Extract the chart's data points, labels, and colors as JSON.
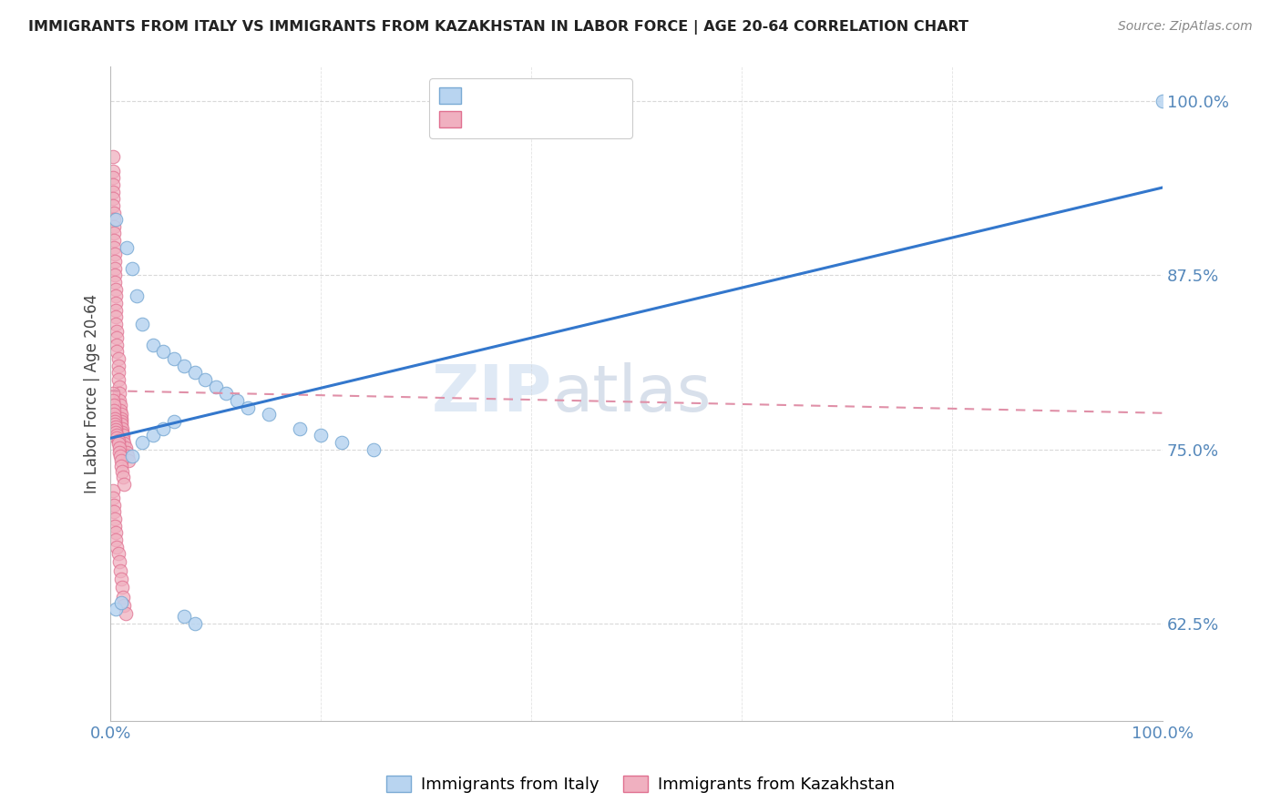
{
  "title": "IMMIGRANTS FROM ITALY VS IMMIGRANTS FROM KAZAKHSTAN IN LABOR FORCE | AGE 20-64 CORRELATION CHART",
  "source": "Source: ZipAtlas.com",
  "ylabel": "In Labor Force | Age 20-64",
  "xlim": [
    0.0,
    1.0
  ],
  "ylim": [
    0.555,
    1.025
  ],
  "yticks": [
    0.625,
    0.75,
    0.875,
    1.0
  ],
  "ytick_labels": [
    "62.5%",
    "75.0%",
    "87.5%",
    "100.0%"
  ],
  "xticks": [
    0.0,
    0.2,
    0.4,
    0.6,
    0.8,
    1.0
  ],
  "xtick_labels": [
    "0.0%",
    "",
    "",
    "",
    "",
    "100.0%"
  ],
  "italy_color": "#b8d4f0",
  "italy_edge": "#7aaad4",
  "kaz_color": "#f0b0c0",
  "kaz_edge": "#e07090",
  "watermark_zip": "ZIP",
  "watermark_atlas": "atlas",
  "italy_scatter_x": [
    0.005,
    0.015,
    0.02,
    0.025,
    0.03,
    0.04,
    0.05,
    0.06,
    0.07,
    0.08,
    0.09,
    0.1,
    0.11,
    0.12,
    0.13,
    0.15,
    0.18,
    0.2,
    0.22,
    0.25,
    0.005,
    0.01,
    0.02,
    0.03,
    0.04,
    0.05,
    0.06,
    0.07,
    0.08,
    1.0
  ],
  "italy_scatter_y": [
    0.915,
    0.895,
    0.88,
    0.86,
    0.84,
    0.825,
    0.82,
    0.815,
    0.81,
    0.805,
    0.8,
    0.795,
    0.79,
    0.785,
    0.78,
    0.775,
    0.765,
    0.76,
    0.755,
    0.75,
    0.635,
    0.64,
    0.745,
    0.755,
    0.76,
    0.765,
    0.77,
    0.63,
    0.625,
    1.0
  ],
  "kaz_scatter_x": [
    0.002,
    0.002,
    0.002,
    0.002,
    0.002,
    0.002,
    0.002,
    0.003,
    0.003,
    0.003,
    0.003,
    0.003,
    0.003,
    0.004,
    0.004,
    0.004,
    0.004,
    0.004,
    0.005,
    0.005,
    0.005,
    0.005,
    0.005,
    0.005,
    0.006,
    0.006,
    0.006,
    0.006,
    0.007,
    0.007,
    0.007,
    0.007,
    0.008,
    0.008,
    0.008,
    0.009,
    0.009,
    0.01,
    0.01,
    0.01,
    0.01,
    0.011,
    0.011,
    0.012,
    0.012,
    0.013,
    0.014,
    0.015,
    0.016,
    0.017,
    0.002,
    0.002,
    0.003,
    0.003,
    0.003,
    0.004,
    0.004,
    0.004,
    0.005,
    0.005,
    0.005,
    0.006,
    0.006,
    0.007,
    0.007,
    0.008,
    0.008,
    0.009,
    0.01,
    0.01,
    0.011,
    0.012,
    0.013,
    0.002,
    0.002,
    0.003,
    0.003,
    0.004,
    0.004,
    0.005,
    0.005,
    0.006,
    0.007,
    0.008,
    0.009,
    0.01,
    0.011,
    0.012,
    0.013,
    0.014
  ],
  "kaz_scatter_y": [
    0.96,
    0.95,
    0.945,
    0.94,
    0.935,
    0.93,
    0.925,
    0.92,
    0.915,
    0.91,
    0.905,
    0.9,
    0.895,
    0.89,
    0.885,
    0.88,
    0.875,
    0.87,
    0.865,
    0.86,
    0.855,
    0.85,
    0.845,
    0.84,
    0.835,
    0.83,
    0.825,
    0.82,
    0.815,
    0.81,
    0.805,
    0.8,
    0.795,
    0.79,
    0.785,
    0.782,
    0.778,
    0.775,
    0.772,
    0.77,
    0.768,
    0.765,
    0.762,
    0.76,
    0.757,
    0.754,
    0.751,
    0.748,
    0.745,
    0.742,
    0.79,
    0.785,
    0.782,
    0.778,
    0.775,
    0.772,
    0.77,
    0.768,
    0.766,
    0.764,
    0.762,
    0.76,
    0.758,
    0.756,
    0.754,
    0.751,
    0.748,
    0.745,
    0.742,
    0.738,
    0.734,
    0.73,
    0.725,
    0.72,
    0.715,
    0.71,
    0.705,
    0.7,
    0.695,
    0.69,
    0.685,
    0.68,
    0.675,
    0.669,
    0.663,
    0.657,
    0.651,
    0.644,
    0.638,
    0.632
  ],
  "italy_trend_x": [
    0.0,
    1.0
  ],
  "italy_trend_y": [
    0.758,
    0.938
  ],
  "kaz_trend_x": [
    0.0,
    1.0
  ],
  "kaz_trend_y": [
    0.792,
    0.776
  ],
  "bg_color": "#ffffff",
  "grid_color": "#d0d0d0",
  "title_color": "#222222",
  "axis_label_color": "#444444",
  "tick_color": "#5588bb",
  "legend_r_color_italy": "#4477bb",
  "legend_r_color_kaz": "#cc4466"
}
